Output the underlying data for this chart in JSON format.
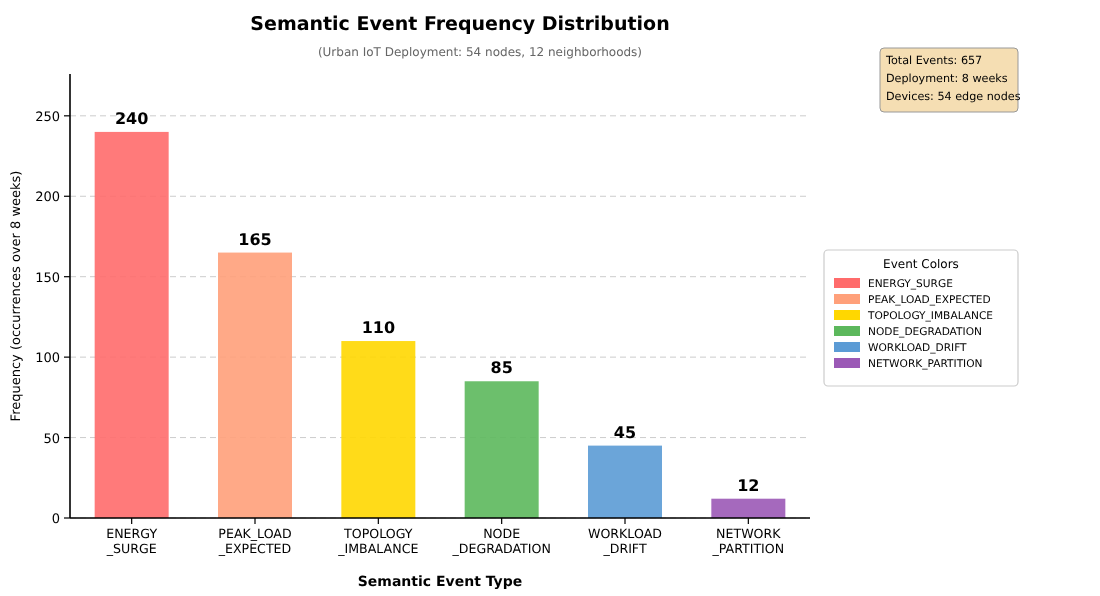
{
  "chart_data": {
    "type": "bar",
    "title": "Semantic Event Frequency Distribution",
    "subtitle": "(Urban IoT Deployment: 54 nodes, 12 neighborhoods)",
    "xlabel": "Semantic Event Type",
    "ylabel": "Frequency (occurrences over 8 weeks)",
    "legend_title": "Event Colors",
    "categories": [
      "ENERGY\n_SURGE",
      "PEAK_LOAD\n_EXPECTED",
      "TOPOLOGY\n_IMBALANCE",
      "NODE\n_DEGRADATION",
      "WORKLOAD\n_DRIFT",
      "NETWORK\n_PARTITION"
    ],
    "series": [
      {
        "name": "ENERGY_SURGE",
        "color": "#ff6b6b",
        "values": [
          240,
          null,
          null,
          null,
          null,
          null
        ]
      },
      {
        "name": "PEAK_LOAD_EXPECTED",
        "color": "#ffa07a",
        "values": [
          null,
          165,
          null,
          null,
          null,
          null
        ]
      },
      {
        "name": "TOPOLOGY_IMBALANCE",
        "color": "#ffd700",
        "values": [
          null,
          null,
          110,
          null,
          null,
          null
        ]
      },
      {
        "name": "NODE_DEGRADATION",
        "color": "#5cb85c",
        "values": [
          null,
          null,
          null,
          85,
          null,
          null
        ]
      },
      {
        "name": "WORKLOAD_DRIFT",
        "color": "#5b9bd5",
        "values": [
          null,
          null,
          null,
          null,
          45,
          null
        ]
      },
      {
        "name": "NETWORK_PARTITION",
        "color": "#9b59b6",
        "values": [
          null,
          null,
          null,
          null,
          null,
          12
        ]
      }
    ],
    "ylim": [
      0,
      276
    ],
    "yticks": [
      0,
      50,
      100,
      150,
      200,
      250
    ],
    "grid": "y",
    "data_labels": true,
    "legend": "right",
    "annotations": [
      "Total Events: 657",
      "Deployment: 8 weeks",
      "Devices: 54 edge nodes"
    ]
  }
}
